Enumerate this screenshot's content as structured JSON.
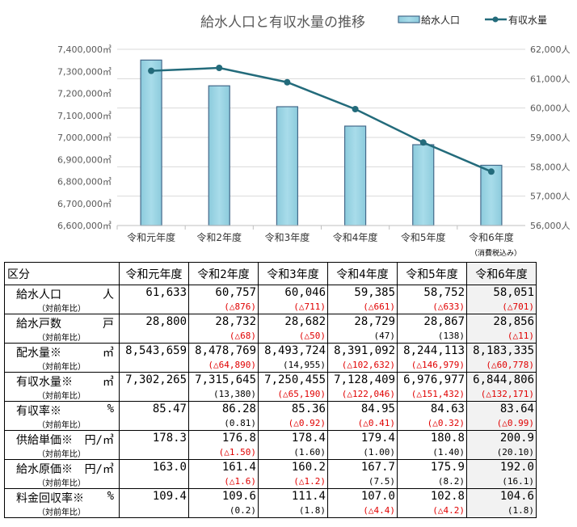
{
  "chart_data": {
    "type": "bar+line",
    "title": "給水人口と有収水量の推移",
    "categories": [
      "令和元年度",
      "令和2年度",
      "令和3年度",
      "令和4年度",
      "令和5年度",
      "令和6年度"
    ],
    "legend_position": "top-right",
    "grid": true,
    "series": [
      {
        "name": "給水人口",
        "type": "bar",
        "axis": "right",
        "values": [
          61633,
          60757,
          60046,
          59385,
          58752,
          58051
        ],
        "color": "#9dd5e5"
      },
      {
        "name": "有収水量",
        "type": "line",
        "axis": "left",
        "values": [
          7302265,
          7315645,
          7250455,
          7128409,
          6976977,
          6844806
        ],
        "color": "#236b7b"
      }
    ],
    "left_axis": {
      "range": [
        6600000,
        7400000
      ],
      "ticks": [
        "6,600,000㎥",
        "6,700,000㎥",
        "6,800,000㎥",
        "6,900,000㎥",
        "7,000,000㎥",
        "7,100,000㎥",
        "7,200,000㎥",
        "7,300,000㎥",
        "7,400,000㎥"
      ]
    },
    "right_axis": {
      "range": [
        56000,
        62000
      ],
      "ticks": [
        "56,000人",
        "57,000人",
        "58,000人",
        "59,000人",
        "60,000人",
        "61,000人",
        "62,000人"
      ]
    }
  },
  "note": "（消費税込み）",
  "table": {
    "corner": "区分",
    "headers": [
      "令和元年度",
      "令和2年度",
      "令和3年度",
      "令和4年度",
      "令和5年度",
      "令和6年度"
    ],
    "sub_label": "（対前年比）",
    "rows": [
      {
        "name": "給水人口",
        "unit": "人",
        "values": [
          "61,633",
          "60,757",
          "60,046",
          "59,385",
          "58,752",
          "58,051"
        ],
        "changes": [
          "",
          "(△876)",
          "(△711)",
          "(△661)",
          "(△633)",
          "(△701)"
        ]
      },
      {
        "name": "給水戸数",
        "unit": "戸",
        "values": [
          "28,800",
          "28,732",
          "28,682",
          "28,729",
          "28,867",
          "28,856"
        ],
        "changes": [
          "",
          "(△68)",
          "(△50)",
          "(47)",
          "(138)",
          "(△11)"
        ]
      },
      {
        "name": "配水量※",
        "unit": "㎥",
        "values": [
          "8,543,659",
          "8,478,769",
          "8,493,724",
          "8,391,092",
          "8,244,113",
          "8,183,335"
        ],
        "changes": [
          "",
          "(△64,890)",
          "(14,955)",
          "(△102,632)",
          "(△146,979)",
          "(△60,778)"
        ]
      },
      {
        "name": "有収水量※",
        "unit": "㎥",
        "values": [
          "7,302,265",
          "7,315,645",
          "7,250,455",
          "7,128,409",
          "6,976,977",
          "6,844,806"
        ],
        "changes": [
          "",
          "(13,380)",
          "(△65,190)",
          "(△122,046)",
          "(△151,432)",
          "(△132,171)"
        ]
      },
      {
        "name": "有収率※",
        "unit": "%",
        "values": [
          "85.47",
          "86.28",
          "85.36",
          "84.95",
          "84.63",
          "83.64"
        ],
        "changes": [
          "",
          "(0.81)",
          "(△0.92)",
          "(△0.41)",
          "(△0.32)",
          "(△0.99)"
        ]
      },
      {
        "name": "供給単価※",
        "unit": "円/㎥",
        "values": [
          "178.3",
          "176.8",
          "178.4",
          "179.4",
          "180.8",
          "200.9"
        ],
        "changes": [
          "",
          "(△1.50)",
          "(1.60)",
          "(1.00)",
          "(1.40)",
          "(20.10)"
        ]
      },
      {
        "name": "給水原価※",
        "unit": "円/㎥",
        "values": [
          "163.0",
          "161.4",
          "160.2",
          "167.7",
          "175.9",
          "192.0"
        ],
        "changes": [
          "",
          "(△1.6)",
          "(△1.2)",
          "(7.5)",
          "(8.2)",
          "(16.1)"
        ]
      },
      {
        "name": "料金回収率※",
        "unit": "%",
        "values": [
          "109.4",
          "109.6",
          "111.4",
          "107.0",
          "102.8",
          "104.6"
        ],
        "changes": [
          "",
          "(0.2)",
          "(1.8)",
          "(△4.4)",
          "(△4.2)",
          "(1.8)"
        ]
      }
    ]
  }
}
